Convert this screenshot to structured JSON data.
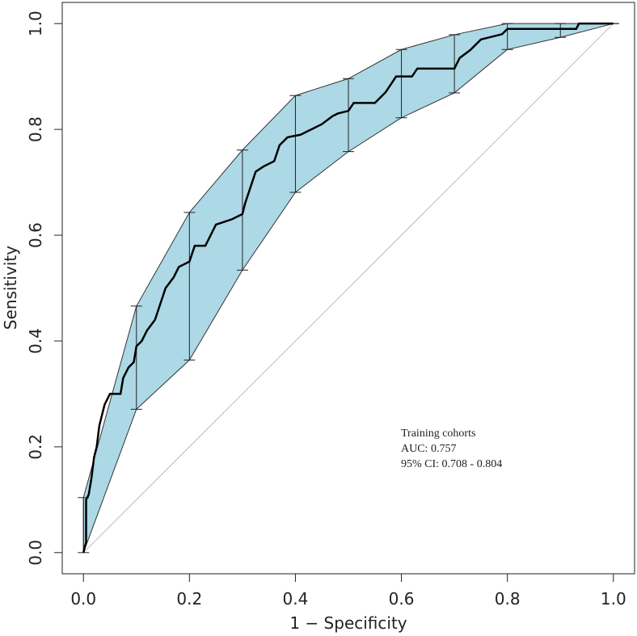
{
  "chart_data": {
    "type": "roc",
    "xlabel": "1 − Specificity",
    "ylabel": "Sensitivity",
    "annotations": [
      "Training cohorts",
      "AUC: 0.757",
      "95% CI:  0.708 - 0.804"
    ],
    "xlim": [
      -0.04,
      1.04
    ],
    "ylim": [
      -0.04,
      1.04
    ],
    "xticks": [
      {
        "value": 0,
        "label": "0.0"
      },
      {
        "value": 0.2,
        "label": "0.2"
      },
      {
        "value": 0.4,
        "label": "0.4"
      },
      {
        "value": 0.6,
        "label": "0.6"
      },
      {
        "value": 0.8,
        "label": "0.8"
      },
      {
        "value": 1,
        "label": "1.0"
      }
    ],
    "yticks": [
      {
        "value": 0,
        "label": "0.0"
      },
      {
        "value": 0.2,
        "label": "0.2"
      },
      {
        "value": 0.4,
        "label": "0.4"
      },
      {
        "value": 0.6,
        "label": "0.6"
      },
      {
        "value": 0.8,
        "label": "0.8"
      },
      {
        "value": 1,
        "label": "1.0"
      }
    ],
    "reference_line": {
      "x": [
        0,
        1
      ],
      "y": [
        0,
        1
      ],
      "color": "#bbbbbb"
    },
    "ci_band": {
      "color": "#add8e6",
      "x": [
        0,
        0.1,
        0.2,
        0.3,
        0.4,
        0.5,
        0.6,
        0.7,
        0.8,
        0.9,
        1.0
      ],
      "lower": [
        0,
        0.271,
        0.364,
        0.534,
        0.681,
        0.758,
        0.822,
        0.869,
        0.951,
        0.974,
        1.0
      ],
      "upper": [
        0.104,
        0.466,
        0.643,
        0.761,
        0.864,
        0.896,
        0.951,
        0.979,
        1.0,
        1.0,
        1.0
      ]
    },
    "curve": {
      "color": "#000000",
      "x": [
        0,
        0.005,
        0.005,
        0.01,
        0.015,
        0.02,
        0.025,
        0.03,
        0.035,
        0.04,
        0.05,
        0.07,
        0.075,
        0.085,
        0.095,
        0.1,
        0.11,
        0.12,
        0.135,
        0.145,
        0.155,
        0.17,
        0.18,
        0.2,
        0.21,
        0.23,
        0.24,
        0.25,
        0.28,
        0.3,
        0.305,
        0.315,
        0.325,
        0.34,
        0.36,
        0.37,
        0.385,
        0.41,
        0.43,
        0.45,
        0.47,
        0.48,
        0.5,
        0.51,
        0.55,
        0.57,
        0.59,
        0.62,
        0.63,
        0.7,
        0.71,
        0.73,
        0.75,
        0.79,
        0.8,
        0.93,
        0.935,
        1.0
      ],
      "y": [
        0,
        0.02,
        0.1,
        0.11,
        0.14,
        0.18,
        0.2,
        0.24,
        0.26,
        0.28,
        0.3,
        0.3,
        0.33,
        0.35,
        0.36,
        0.39,
        0.4,
        0.42,
        0.44,
        0.47,
        0.5,
        0.52,
        0.54,
        0.55,
        0.58,
        0.58,
        0.6,
        0.62,
        0.63,
        0.64,
        0.66,
        0.69,
        0.72,
        0.73,
        0.74,
        0.77,
        0.785,
        0.79,
        0.8,
        0.81,
        0.825,
        0.83,
        0.835,
        0.85,
        0.85,
        0.87,
        0.9,
        0.9,
        0.915,
        0.915,
        0.935,
        0.95,
        0.97,
        0.98,
        0.99,
        0.99,
        1.0,
        1.0
      ]
    }
  }
}
